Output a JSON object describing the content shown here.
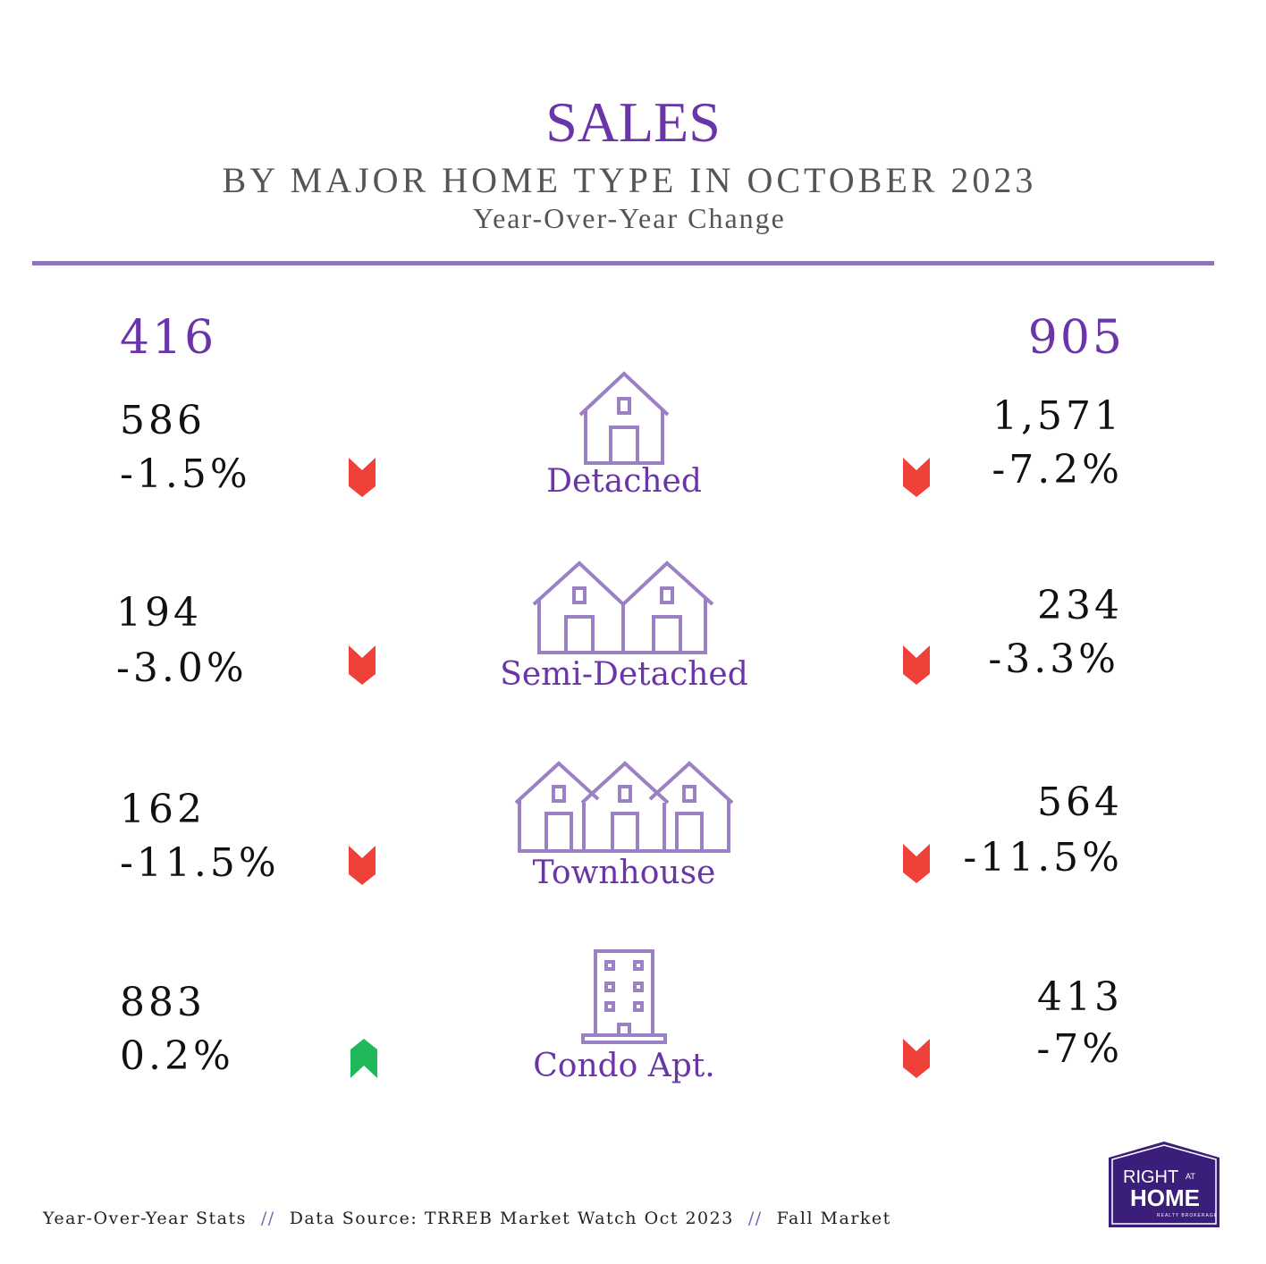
{
  "header": {
    "title": "SALES",
    "subtitle": "BY MAJOR HOME TYPE IN OCTOBER 2023",
    "caption": "Year-Over-Year Change"
  },
  "regions": {
    "left": "416",
    "right": "905"
  },
  "rows": [
    {
      "type": "Detached",
      "icon": "detached-house-icon",
      "left": {
        "value": "586",
        "change": "-1.5%",
        "direction": "down"
      },
      "right": {
        "value": "1,571",
        "change": "-7.2%",
        "direction": "down"
      }
    },
    {
      "type": "Semi-Detached",
      "icon": "semi-detached-house-icon",
      "left": {
        "value": "194",
        "change": "-3.0%",
        "direction": "down"
      },
      "right": {
        "value": "234",
        "change": "-3.3%",
        "direction": "down"
      }
    },
    {
      "type": "Townhouse",
      "icon": "townhouse-icon",
      "left": {
        "value": "162",
        "change": "-11.5%",
        "direction": "down"
      },
      "right": {
        "value": "564",
        "change": "-11.5%",
        "direction": "down"
      }
    },
    {
      "type": "Condo Apt.",
      "icon": "condo-building-icon",
      "left": {
        "value": "883",
        "change": "0.2%",
        "direction": "up"
      },
      "right": {
        "value": "413",
        "change": "-7%",
        "direction": "down"
      }
    }
  ],
  "footer": {
    "items": [
      "Year-Over-Year Stats",
      "Data Source: TRREB Market Watch Oct 2023",
      "Fall Market"
    ],
    "separator": "//"
  },
  "logo": {
    "line1": "RIGHT",
    "line1b": "AT",
    "line2": "HOME",
    "line3": "REALTY BROKERAGE"
  },
  "colors": {
    "accent": "#6a35a8",
    "icon": "#9b80c4",
    "down": "#f0403a",
    "up": "#1fb85a",
    "logo": "#3b1d7a"
  }
}
